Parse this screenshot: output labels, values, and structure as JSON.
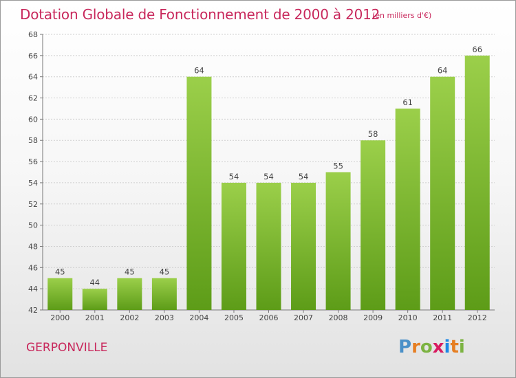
{
  "header": {
    "title": "Dotation Globale de Fonctionnement de 2000 à 2012",
    "unit": "(en milliers d'€)"
  },
  "footer": {
    "town": "GERPONVILLE",
    "logo": {
      "letters": [
        "P",
        "r",
        "o",
        "x",
        "i",
        "t",
        "i"
      ],
      "colors": [
        "#4a90c8",
        "#e67e22",
        "#7cb342",
        "#d81b60",
        "#1e88e5",
        "#e67e22",
        "#7cb342"
      ]
    }
  },
  "chart_data": {
    "type": "bar",
    "title": "Dotation Globale de Fonctionnement de 2000 à 2012",
    "subtitle": "(en milliers d'€)",
    "categories": [
      "2000",
      "2001",
      "2002",
      "2003",
      "2004",
      "2005",
      "2006",
      "2007",
      "2008",
      "2009",
      "2010",
      "2011",
      "2012"
    ],
    "values": [
      45,
      44,
      45,
      45,
      64,
      54,
      54,
      54,
      55,
      58,
      61,
      64,
      66
    ],
    "ylim": [
      42,
      68
    ],
    "yticks": [
      42,
      44,
      46,
      48,
      50,
      52,
      54,
      56,
      58,
      60,
      62,
      64,
      66,
      68
    ],
    "grid": true,
    "bar_color_top": "#9bcf4a",
    "bar_color_bottom": "#5d9c18"
  }
}
